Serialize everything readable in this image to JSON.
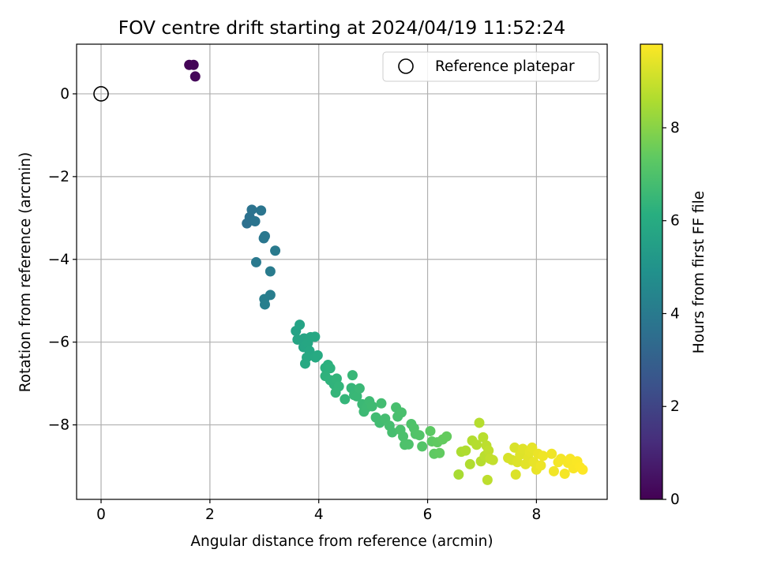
{
  "chart_data": {
    "type": "scatter",
    "title": "FOV centre drift starting at 2024/04/19 11:52:24",
    "xlabel": "Angular distance from reference (arcmin)",
    "ylabel": "Rotation from reference (arcmin)",
    "xlim": [
      -0.45,
      9.3
    ],
    "ylim": [
      -9.8,
      1.2
    ],
    "xticks": [
      0,
      2,
      4,
      6,
      8
    ],
    "yticks": [
      0,
      -2,
      -4,
      -6,
      -8
    ],
    "grid": true,
    "legend": {
      "placement": "top-right",
      "entries": [
        "Reference platepar"
      ]
    },
    "reference_point": {
      "x": 0,
      "y": 0,
      "label": "Reference platepar"
    },
    "colorbar": {
      "label": "Hours from first FF file",
      "colormap": "viridis",
      "range": [
        0,
        9.8
      ],
      "ticks": [
        0,
        2,
        4,
        6,
        8
      ]
    },
    "points": [
      {
        "x": 1.62,
        "y": 0.7,
        "c": 0.05
      },
      {
        "x": 1.7,
        "y": 0.7,
        "c": 0.1
      },
      {
        "x": 1.73,
        "y": 0.42,
        "c": 0.15
      },
      {
        "x": 2.68,
        "y": -3.13,
        "c": 3.6
      },
      {
        "x": 2.73,
        "y": -2.98,
        "c": 3.65
      },
      {
        "x": 2.77,
        "y": -2.8,
        "c": 3.7
      },
      {
        "x": 2.83,
        "y": -3.08,
        "c": 3.75
      },
      {
        "x": 2.94,
        "y": -2.82,
        "c": 3.8
      },
      {
        "x": 2.99,
        "y": -3.49,
        "c": 3.85
      },
      {
        "x": 3.01,
        "y": -3.44,
        "c": 3.9
      },
      {
        "x": 2.85,
        "y": -4.07,
        "c": 3.95
      },
      {
        "x": 3.2,
        "y": -3.79,
        "c": 4.0
      },
      {
        "x": 3.11,
        "y": -4.29,
        "c": 4.05
      },
      {
        "x": 3.11,
        "y": -4.86,
        "c": 4.1
      },
      {
        "x": 3.0,
        "y": -4.96,
        "c": 4.15
      },
      {
        "x": 3.01,
        "y": -5.09,
        "c": 4.2
      },
      {
        "x": 3.58,
        "y": -5.73,
        "c": 5.6
      },
      {
        "x": 3.65,
        "y": -5.58,
        "c": 5.65
      },
      {
        "x": 3.61,
        "y": -5.94,
        "c": 5.7
      },
      {
        "x": 3.73,
        "y": -5.91,
        "c": 5.72
      },
      {
        "x": 3.72,
        "y": -6.12,
        "c": 5.75
      },
      {
        "x": 3.8,
        "y": -6.02,
        "c": 5.78
      },
      {
        "x": 3.85,
        "y": -5.88,
        "c": 5.8
      },
      {
        "x": 3.93,
        "y": -5.87,
        "c": 5.82
      },
      {
        "x": 3.83,
        "y": -6.21,
        "c": 5.85
      },
      {
        "x": 3.78,
        "y": -6.37,
        "c": 5.88
      },
      {
        "x": 3.75,
        "y": -6.52,
        "c": 5.9
      },
      {
        "x": 3.94,
        "y": -6.37,
        "c": 5.92
      },
      {
        "x": 3.98,
        "y": -6.32,
        "c": 5.95
      },
      {
        "x": 4.12,
        "y": -6.62,
        "c": 6.2
      },
      {
        "x": 4.17,
        "y": -6.55,
        "c": 6.22
      },
      {
        "x": 4.21,
        "y": -6.63,
        "c": 6.25
      },
      {
        "x": 4.12,
        "y": -6.82,
        "c": 6.28
      },
      {
        "x": 4.21,
        "y": -6.92,
        "c": 6.3
      },
      {
        "x": 4.28,
        "y": -7.02,
        "c": 6.32
      },
      {
        "x": 4.33,
        "y": -6.88,
        "c": 6.35
      },
      {
        "x": 4.37,
        "y": -7.07,
        "c": 6.38
      },
      {
        "x": 4.31,
        "y": -7.22,
        "c": 6.4
      },
      {
        "x": 4.48,
        "y": -7.38,
        "c": 6.42
      },
      {
        "x": 4.6,
        "y": -7.11,
        "c": 6.45
      },
      {
        "x": 4.62,
        "y": -6.8,
        "c": 6.48
      },
      {
        "x": 4.65,
        "y": -7.28,
        "c": 6.5
      },
      {
        "x": 4.7,
        "y": -7.31,
        "c": 6.52
      },
      {
        "x": 4.75,
        "y": -7.12,
        "c": 6.55
      },
      {
        "x": 4.8,
        "y": -7.5,
        "c": 6.58
      },
      {
        "x": 4.83,
        "y": -7.68,
        "c": 6.6
      },
      {
        "x": 4.88,
        "y": -7.58,
        "c": 6.62
      },
      {
        "x": 4.93,
        "y": -7.43,
        "c": 6.65
      },
      {
        "x": 4.98,
        "y": -7.55,
        "c": 6.68
      },
      {
        "x": 5.05,
        "y": -7.82,
        "c": 6.7
      },
      {
        "x": 5.12,
        "y": -7.95,
        "c": 6.72
      },
      {
        "x": 5.15,
        "y": -7.48,
        "c": 6.75
      },
      {
        "x": 5.22,
        "y": -7.85,
        "c": 6.78
      },
      {
        "x": 5.3,
        "y": -8.02,
        "c": 6.8
      },
      {
        "x": 5.35,
        "y": -8.18,
        "c": 6.82
      },
      {
        "x": 5.42,
        "y": -7.58,
        "c": 6.85
      },
      {
        "x": 5.45,
        "y": -7.8,
        "c": 6.88
      },
      {
        "x": 5.52,
        "y": -7.7,
        "c": 6.9
      },
      {
        "x": 5.5,
        "y": -8.12,
        "c": 6.92
      },
      {
        "x": 5.55,
        "y": -8.28,
        "c": 6.95
      },
      {
        "x": 5.58,
        "y": -8.48,
        "c": 6.98
      },
      {
        "x": 5.65,
        "y": -8.47,
        "c": 7.0
      },
      {
        "x": 5.7,
        "y": -7.98,
        "c": 7.02
      },
      {
        "x": 5.75,
        "y": -8.08,
        "c": 7.05
      },
      {
        "x": 5.78,
        "y": -8.22,
        "c": 7.08
      },
      {
        "x": 5.85,
        "y": -8.25,
        "c": 7.1
      },
      {
        "x": 5.9,
        "y": -8.52,
        "c": 7.12
      },
      {
        "x": 6.05,
        "y": -8.15,
        "c": 7.3
      },
      {
        "x": 6.08,
        "y": -8.4,
        "c": 7.32
      },
      {
        "x": 6.12,
        "y": -8.7,
        "c": 7.35
      },
      {
        "x": 6.18,
        "y": -8.42,
        "c": 7.38
      },
      {
        "x": 6.22,
        "y": -8.68,
        "c": 7.4
      },
      {
        "x": 6.28,
        "y": -8.35,
        "c": 7.42
      },
      {
        "x": 6.35,
        "y": -8.28,
        "c": 7.45
      },
      {
        "x": 6.57,
        "y": -9.2,
        "c": 8.5
      },
      {
        "x": 6.62,
        "y": -8.65,
        "c": 8.55
      },
      {
        "x": 6.7,
        "y": -8.62,
        "c": 8.6
      },
      {
        "x": 6.78,
        "y": -8.95,
        "c": 8.62
      },
      {
        "x": 6.82,
        "y": -8.38,
        "c": 8.65
      },
      {
        "x": 6.9,
        "y": -8.48,
        "c": 8.68
      },
      {
        "x": 6.95,
        "y": -7.95,
        "c": 8.7
      },
      {
        "x": 6.98,
        "y": -8.88,
        "c": 8.72
      },
      {
        "x": 7.02,
        "y": -8.3,
        "c": 8.75
      },
      {
        "x": 7.05,
        "y": -8.75,
        "c": 8.78
      },
      {
        "x": 7.08,
        "y": -8.5,
        "c": 8.8
      },
      {
        "x": 7.1,
        "y": -9.33,
        "c": 8.82
      },
      {
        "x": 7.12,
        "y": -8.62,
        "c": 8.85
      },
      {
        "x": 7.15,
        "y": -8.82,
        "c": 8.88
      },
      {
        "x": 7.2,
        "y": -8.85,
        "c": 8.9
      },
      {
        "x": 7.48,
        "y": -8.8,
        "c": 9.2
      },
      {
        "x": 7.55,
        "y": -8.85,
        "c": 9.22
      },
      {
        "x": 7.6,
        "y": -8.55,
        "c": 9.25
      },
      {
        "x": 7.62,
        "y": -9.2,
        "c": 9.28
      },
      {
        "x": 7.65,
        "y": -8.9,
        "c": 9.3
      },
      {
        "x": 7.7,
        "y": -8.72,
        "c": 9.32
      },
      {
        "x": 7.75,
        "y": -8.58,
        "c": 9.35
      },
      {
        "x": 7.8,
        "y": -8.95,
        "c": 9.38
      },
      {
        "x": 7.85,
        "y": -8.8,
        "c": 9.4
      },
      {
        "x": 7.88,
        "y": -8.65,
        "c": 9.42
      },
      {
        "x": 7.92,
        "y": -8.55,
        "c": 9.45
      },
      {
        "x": 7.95,
        "y": -8.9,
        "c": 9.48
      },
      {
        "x": 8.0,
        "y": -9.08,
        "c": 9.5
      },
      {
        "x": 8.03,
        "y": -8.7,
        "c": 9.52
      },
      {
        "x": 8.08,
        "y": -8.98,
        "c": 9.55
      },
      {
        "x": 8.12,
        "y": -8.75,
        "c": 9.58
      },
      {
        "x": 8.28,
        "y": -8.7,
        "c": 9.6
      },
      {
        "x": 8.32,
        "y": -9.12,
        "c": 9.62
      },
      {
        "x": 8.4,
        "y": -8.9,
        "c": 9.64
      },
      {
        "x": 8.45,
        "y": -8.82,
        "c": 9.66
      },
      {
        "x": 8.52,
        "y": -9.18,
        "c": 9.68
      },
      {
        "x": 8.58,
        "y": -8.92,
        "c": 9.7
      },
      {
        "x": 8.62,
        "y": -8.82,
        "c": 9.72
      },
      {
        "x": 8.68,
        "y": -9.05,
        "c": 9.74
      },
      {
        "x": 8.75,
        "y": -8.88,
        "c": 9.76
      },
      {
        "x": 8.8,
        "y": -9.02,
        "c": 9.78
      },
      {
        "x": 8.85,
        "y": -9.08,
        "c": 9.8
      }
    ]
  }
}
